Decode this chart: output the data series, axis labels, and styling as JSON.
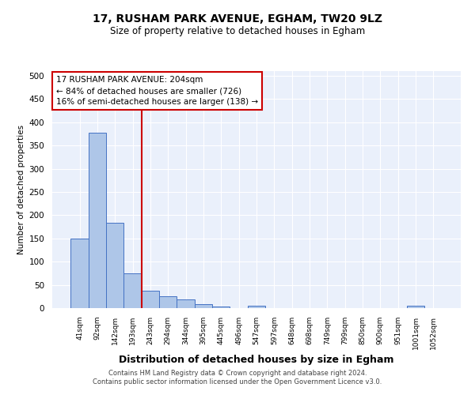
{
  "title_line1": "17, RUSHAM PARK AVENUE, EGHAM, TW20 9LZ",
  "title_line2": "Size of property relative to detached houses in Egham",
  "xlabel": "Distribution of detached houses by size in Egham",
  "ylabel": "Number of detached properties",
  "bar_labels": [
    "41sqm",
    "92sqm",
    "142sqm",
    "193sqm",
    "243sqm",
    "294sqm",
    "344sqm",
    "395sqm",
    "445sqm",
    "496sqm",
    "547sqm",
    "597sqm",
    "648sqm",
    "698sqm",
    "749sqm",
    "799sqm",
    "850sqm",
    "900sqm",
    "951sqm",
    "1001sqm",
    "1052sqm"
  ],
  "bar_values": [
    150,
    378,
    184,
    75,
    38,
    25,
    18,
    8,
    4,
    0,
    5,
    0,
    0,
    0,
    0,
    0,
    0,
    0,
    0,
    5,
    0
  ],
  "bar_color": "#aec6e8",
  "bar_edge_color": "#4472c4",
  "bg_color": "#eaf0fb",
  "grid_color": "#ffffff",
  "red_line_x": 3.5,
  "annotation_text": "17 RUSHAM PARK AVENUE: 204sqm\n← 84% of detached houses are smaller (726)\n16% of semi-detached houses are larger (138) →",
  "annotation_box_color": "#ffffff",
  "annotation_border_color": "#cc0000",
  "footer": "Contains HM Land Registry data © Crown copyright and database right 2024.\nContains public sector information licensed under the Open Government Licence v3.0.",
  "ylim": [
    0,
    510
  ],
  "yticks": [
    0,
    50,
    100,
    150,
    200,
    250,
    300,
    350,
    400,
    450,
    500
  ]
}
